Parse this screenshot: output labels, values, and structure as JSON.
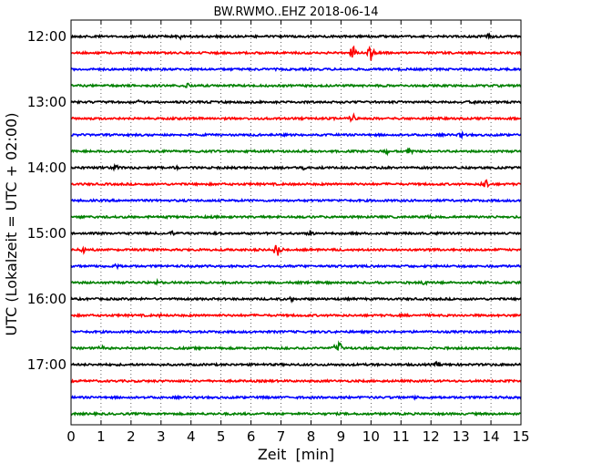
{
  "chart_data": {
    "type": "line",
    "title": "BW.RWMO..EHZ 2018-06-14",
    "xlabel": "Zeit  [min]",
    "ylabel": "UTC (Lokalzeit = UTC + 02:00)",
    "xlim": [
      0,
      15
    ],
    "x_ticks": [
      0,
      1,
      2,
      3,
      4,
      5,
      6,
      7,
      8,
      9,
      10,
      11,
      12,
      13,
      14,
      15
    ],
    "y_ticks": [
      "12:00",
      "13:00",
      "14:00",
      "15:00",
      "16:00",
      "17:00"
    ],
    "grid": "vertical dotted",
    "trace_interval_minutes": 15,
    "trace_colors": [
      "#000000",
      "#ff0000",
      "#0000ff",
      "#008000"
    ],
    "traces": [
      {
        "start": "12:00",
        "color": "#000000",
        "events": [
          {
            "t": 3.6,
            "amp": 0.15
          },
          {
            "t": 13.9,
            "amp": 0.2
          }
        ]
      },
      {
        "start": "12:15",
        "color": "#ff0000",
        "events": [
          {
            "t": 9.4,
            "amp": 0.55
          },
          {
            "t": 10.0,
            "amp": 0.7
          }
        ]
      },
      {
        "start": "12:30",
        "color": "#0000ff",
        "events": []
      },
      {
        "start": "12:45",
        "color": "#008000",
        "events": [
          {
            "t": 3.9,
            "amp": 0.15
          }
        ]
      },
      {
        "start": "13:00",
        "color": "#000000",
        "events": [
          {
            "t": 2.3,
            "amp": 0.15
          },
          {
            "t": 13.4,
            "amp": 0.2
          }
        ]
      },
      {
        "start": "13:15",
        "color": "#ff0000",
        "events": [
          {
            "t": 9.4,
            "amp": 0.35
          }
        ]
      },
      {
        "start": "13:30",
        "color": "#0000ff",
        "events": [
          {
            "t": 13.0,
            "amp": 0.15
          }
        ]
      },
      {
        "start": "13:45",
        "color": "#008000",
        "events": [
          {
            "t": 10.5,
            "amp": 0.2
          },
          {
            "t": 11.3,
            "amp": 0.2
          }
        ]
      },
      {
        "start": "14:00",
        "color": "#000000",
        "events": [
          {
            "t": 1.5,
            "amp": 0.2
          },
          {
            "t": 3.5,
            "amp": 0.15
          },
          {
            "t": 7.8,
            "amp": 0.15
          }
        ]
      },
      {
        "start": "14:15",
        "color": "#ff0000",
        "events": [
          {
            "t": 13.8,
            "amp": 0.4
          }
        ]
      },
      {
        "start": "14:30",
        "color": "#0000ff",
        "events": []
      },
      {
        "start": "14:45",
        "color": "#008000",
        "events": [
          {
            "t": 12.0,
            "amp": 0.15
          }
        ]
      },
      {
        "start": "15:00",
        "color": "#000000",
        "events": [
          {
            "t": 3.4,
            "amp": 0.2
          },
          {
            "t": 8.0,
            "amp": 0.25
          }
        ]
      },
      {
        "start": "15:15",
        "color": "#ff0000",
        "events": [
          {
            "t": 0.4,
            "amp": 0.25
          },
          {
            "t": 6.9,
            "amp": 0.75
          }
        ]
      },
      {
        "start": "15:30",
        "color": "#0000ff",
        "events": [
          {
            "t": 1.5,
            "amp": 0.15
          }
        ]
      },
      {
        "start": "15:45",
        "color": "#008000",
        "events": [
          {
            "t": 2.9,
            "amp": 0.15
          },
          {
            "t": 11.8,
            "amp": 0.15
          }
        ]
      },
      {
        "start": "16:00",
        "color": "#000000",
        "events": [
          {
            "t": 7.4,
            "amp": 0.15
          }
        ]
      },
      {
        "start": "16:15",
        "color": "#ff0000",
        "events": [
          {
            "t": 3.0,
            "amp": 0.1
          }
        ]
      },
      {
        "start": "16:30",
        "color": "#0000ff",
        "events": []
      },
      {
        "start": "16:45",
        "color": "#008000",
        "events": [
          {
            "t": 1.0,
            "amp": 0.15
          },
          {
            "t": 8.9,
            "amp": 0.7
          }
        ]
      },
      {
        "start": "17:00",
        "color": "#000000",
        "events": [
          {
            "t": 12.2,
            "amp": 0.15
          }
        ]
      },
      {
        "start": "17:15",
        "color": "#ff0000",
        "events": []
      },
      {
        "start": "17:30",
        "color": "#0000ff",
        "events": [
          {
            "t": 11.5,
            "amp": 0.1
          }
        ]
      },
      {
        "start": "17:45",
        "color": "#008000",
        "events": []
      }
    ]
  }
}
